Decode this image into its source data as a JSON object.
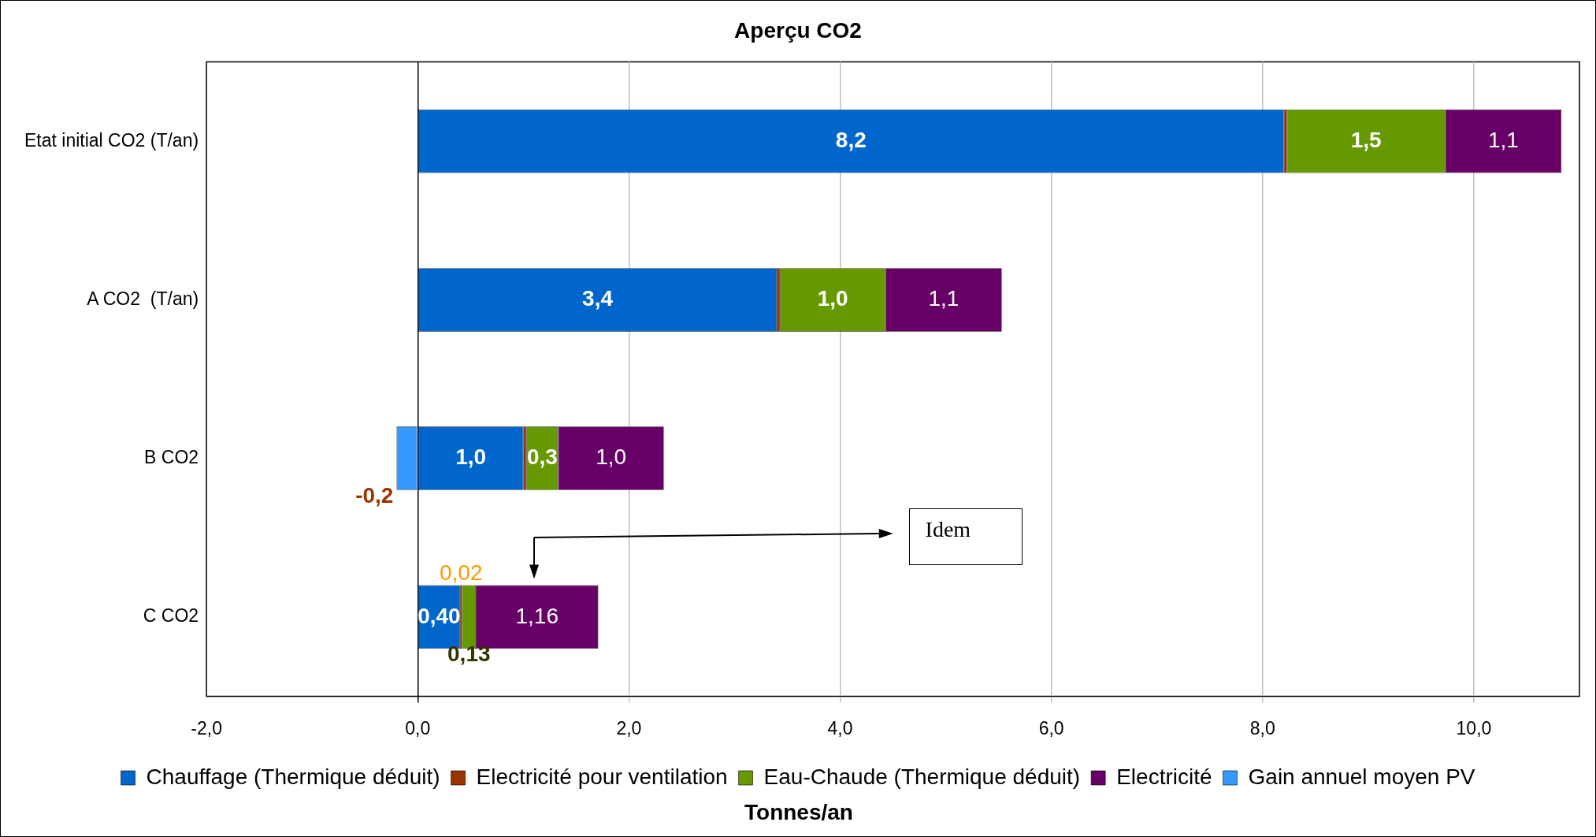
{
  "chart_data": {
    "type": "bar",
    "orientation": "horizontal",
    "stacked": true,
    "title": "Aperçu CO2",
    "xlabel": "Tonnes/an",
    "categories": [
      "Etat initial CO2 (T/an)",
      "A CO2  (T/an)",
      "B CO2",
      "C CO2"
    ],
    "series": [
      {
        "name": "Chauffage (Thermique déduit)",
        "color": "#0066cc",
        "values": [
          8.2,
          3.4,
          1.0,
          0.4
        ],
        "value_labels": [
          "8,2",
          "3,4",
          "1,0",
          "0,40"
        ]
      },
      {
        "name": "Electricité pour ventilation",
        "color": "#993300",
        "values": [
          0.03,
          0.03,
          0.03,
          0.02
        ],
        "value_labels": [
          null,
          null,
          null,
          "0,02"
        ]
      },
      {
        "name": "Eau-Chaude (Thermique déduit)",
        "color": "#669900",
        "values": [
          1.5,
          1.0,
          0.3,
          0.13
        ],
        "value_labels": [
          "1,5",
          "1,0",
          "0,3",
          "0,13"
        ]
      },
      {
        "name": "Electricité",
        "color": "#660066",
        "values": [
          1.1,
          1.1,
          1.0,
          1.16
        ],
        "value_labels": [
          "1,1",
          "1,1",
          "1,0",
          "1,16"
        ]
      },
      {
        "name": "Gain annuel moyen PV",
        "color": "#3399ff",
        "values": [
          null,
          null,
          -0.2,
          null
        ],
        "value_labels": [
          null,
          null,
          "-0,2",
          null
        ]
      }
    ],
    "xlim": [
      -2,
      11
    ],
    "xticks": [
      {
        "value": -2,
        "label": "-2,0"
      },
      {
        "value": 0,
        "label": "0,0"
      },
      {
        "value": 2,
        "label": "2,0"
      },
      {
        "value": 4,
        "label": "4,0"
      },
      {
        "value": 6,
        "label": "6,0"
      },
      {
        "value": 8,
        "label": "8,0"
      },
      {
        "value": 10,
        "label": "10,0"
      }
    ],
    "grid": "x",
    "legend": "bottom",
    "annotations": [
      "Idem"
    ]
  }
}
